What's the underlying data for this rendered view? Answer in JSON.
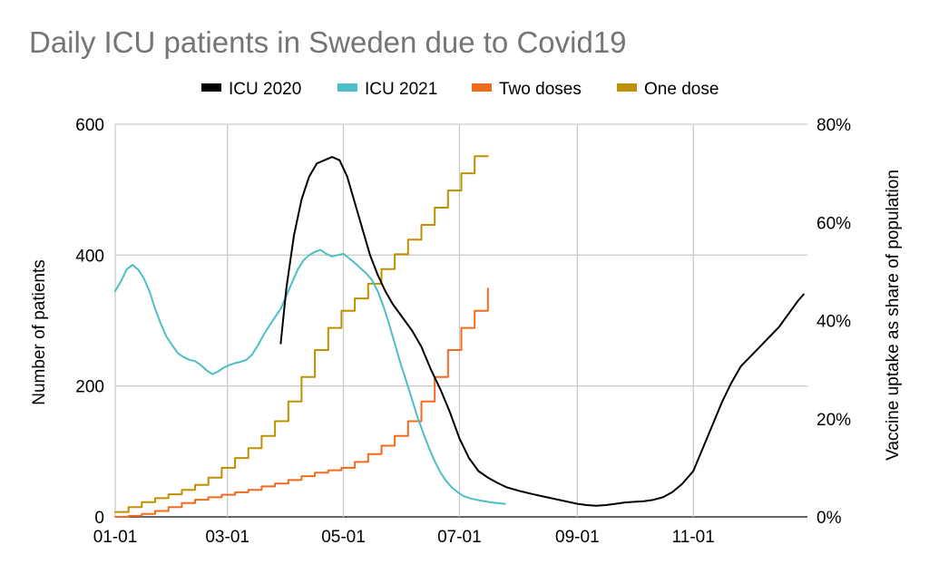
{
  "chart_data": {
    "type": "line",
    "title": "Daily ICU patients in Sweden due to Covid19",
    "legend_position": "top",
    "grid": true,
    "x_axis": {
      "type": "date",
      "range": [
        "01-01",
        "12-31"
      ],
      "ticks": [
        "01-01",
        "03-01",
        "05-01",
        "07-01",
        "09-01",
        "11-01"
      ]
    },
    "y_left": {
      "label": "Number of patients",
      "range": [
        0,
        600
      ],
      "ticks": [
        0,
        200,
        400,
        600
      ]
    },
    "y_right": {
      "label": "Vaccine uptake as share of population",
      "range": [
        0,
        80
      ],
      "ticks": [
        "0%",
        "20%",
        "40%",
        "60%",
        "80%"
      ]
    },
    "series": [
      {
        "name": "ICU 2020",
        "color": "#000000",
        "axis": "left",
        "style": "line",
        "x": [
          "03-29",
          "04-01",
          "04-05",
          "04-09",
          "04-13",
          "04-17",
          "04-21",
          "04-25",
          "04-29",
          "05-03",
          "05-07",
          "05-11",
          "05-15",
          "05-19",
          "05-23",
          "05-27",
          "06-01",
          "06-06",
          "06-11",
          "06-16",
          "06-21",
          "06-26",
          "07-01",
          "07-06",
          "07-11",
          "07-16",
          "07-21",
          "07-26",
          "08-01",
          "08-08",
          "08-16",
          "08-24",
          "09-01",
          "09-06",
          "09-11",
          "09-16",
          "09-21",
          "09-26",
          "10-01",
          "10-06",
          "10-11",
          "10-16",
          "10-21",
          "10-26",
          "11-01",
          "11-06",
          "11-11",
          "11-16",
          "11-21",
          "11-26",
          "12-01",
          "12-06",
          "12-11",
          "12-16",
          "12-21",
          "12-26",
          "12-29"
        ],
        "values": [
          265,
          350,
          430,
          485,
          520,
          540,
          545,
          550,
          545,
          520,
          480,
          440,
          400,
          370,
          345,
          325,
          305,
          285,
          260,
          225,
          195,
          160,
          120,
          90,
          70,
          60,
          52,
          45,
          40,
          35,
          30,
          25,
          20,
          18,
          17,
          18,
          20,
          22,
          23,
          24,
          26,
          30,
          38,
          50,
          70,
          105,
          140,
          175,
          205,
          230,
          245,
          260,
          275,
          290,
          310,
          330,
          340
        ]
      },
      {
        "name": "ICU 2021",
        "color": "#4bbfc5",
        "axis": "left",
        "style": "line",
        "x": [
          "01-01",
          "01-04",
          "01-07",
          "01-10",
          "01-13",
          "01-16",
          "01-19",
          "01-22",
          "01-25",
          "01-28",
          "01-31",
          "02-03",
          "02-06",
          "02-09",
          "02-12",
          "02-15",
          "02-18",
          "02-21",
          "02-24",
          "02-27",
          "03-02",
          "03-05",
          "03-08",
          "03-11",
          "03-14",
          "03-17",
          "03-20",
          "03-23",
          "03-26",
          "03-29",
          "04-01",
          "04-04",
          "04-07",
          "04-10",
          "04-13",
          "04-16",
          "04-19",
          "04-22",
          "04-25",
          "04-28",
          "05-01",
          "05-04",
          "05-07",
          "05-10",
          "05-13",
          "05-16",
          "05-19",
          "05-22",
          "05-25",
          "05-28",
          "05-31",
          "06-03",
          "06-06",
          "06-09",
          "06-12",
          "06-15",
          "06-18",
          "06-21",
          "06-24",
          "06-27",
          "06-30",
          "07-03",
          "07-07",
          "07-12",
          "07-18",
          "07-25"
        ],
        "values": [
          345,
          360,
          378,
          385,
          378,
          365,
          345,
          318,
          295,
          275,
          262,
          250,
          244,
          240,
          238,
          232,
          224,
          218,
          222,
          228,
          232,
          235,
          237,
          240,
          248,
          262,
          278,
          292,
          305,
          318,
          338,
          358,
          378,
          392,
          400,
          405,
          408,
          402,
          398,
          400,
          402,
          395,
          388,
          380,
          372,
          362,
          345,
          322,
          295,
          265,
          235,
          208,
          180,
          152,
          128,
          105,
          85,
          68,
          55,
          45,
          38,
          32,
          28,
          25,
          22,
          20
        ]
      },
      {
        "name": "Two doses",
        "color": "#f26b1d",
        "axis": "right",
        "style": "step",
        "x": [
          "01-01",
          "01-08",
          "01-15",
          "01-22",
          "01-29",
          "02-05",
          "02-12",
          "02-19",
          "02-26",
          "03-05",
          "03-12",
          "03-19",
          "03-26",
          "04-02",
          "04-09",
          "04-16",
          "04-23",
          "04-30",
          "05-07",
          "05-14",
          "05-21",
          "05-28",
          "06-04",
          "06-11",
          "06-18",
          "06-25",
          "07-02",
          "07-09",
          "07-16"
        ],
        "values": [
          0,
          0.2,
          0.6,
          1.2,
          2.0,
          2.8,
          3.5,
          4.0,
          4.5,
          5.0,
          5.5,
          6.2,
          6.8,
          7.5,
          8.3,
          9.0,
          9.5,
          10.0,
          11.2,
          12.8,
          14.5,
          16.5,
          19.5,
          23.5,
          28.5,
          34.0,
          38.5,
          42.0,
          46.5
        ]
      },
      {
        "name": "One dose",
        "color": "#bf9000",
        "axis": "right",
        "style": "step",
        "x": [
          "01-01",
          "01-08",
          "01-15",
          "01-22",
          "01-29",
          "02-05",
          "02-12",
          "02-19",
          "02-26",
          "03-05",
          "03-12",
          "03-19",
          "03-26",
          "04-02",
          "04-09",
          "04-16",
          "04-23",
          "04-30",
          "05-07",
          "05-14",
          "05-21",
          "05-28",
          "06-04",
          "06-11",
          "06-18",
          "06-25",
          "07-02",
          "07-09",
          "07-16"
        ],
        "values": [
          1.0,
          2.0,
          3.0,
          3.8,
          4.6,
          5.5,
          6.5,
          8.0,
          10.0,
          12.0,
          14.0,
          16.5,
          19.5,
          23.5,
          28.5,
          34.0,
          38.5,
          42.0,
          44.5,
          47.5,
          50.5,
          53.5,
          56.5,
          59.5,
          63.0,
          66.5,
          70.0,
          73.5,
          73.5
        ]
      }
    ]
  }
}
